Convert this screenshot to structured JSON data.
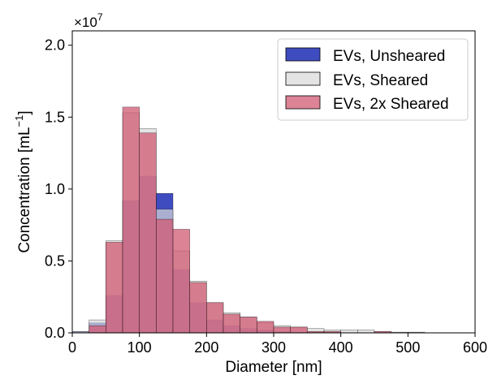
{
  "chart_data": {
    "type": "bar",
    "subtype": "overlaid-histogram",
    "title": "",
    "xlabel": "Diameter [nm]",
    "ylabel_main": "Concentration [mL",
    "ylabel_exponent": "−1",
    "ylabel_close": "]",
    "y_multiplier_base": "×10",
    "y_multiplier_exponent": "7",
    "xlim": [
      0,
      600
    ],
    "ylim": [
      0,
      2.1
    ],
    "x_ticks": [
      0,
      100,
      200,
      300,
      400,
      500,
      600
    ],
    "x_tick_labels": [
      "0",
      "100",
      "200",
      "300",
      "400",
      "500",
      "600"
    ],
    "y_ticks": [
      0,
      0.5,
      1.0,
      1.5,
      2.0
    ],
    "y_tick_labels": [
      "0.0",
      "0.5",
      "1.0",
      "1.5",
      "2.0"
    ],
    "bin_edges": [
      0,
      25,
      50,
      75,
      100,
      125,
      150,
      175,
      200,
      225,
      250,
      275,
      300,
      325,
      350,
      375,
      400,
      425,
      450,
      475,
      500,
      525,
      550,
      575,
      600
    ],
    "legend_position": "top-right",
    "series": [
      {
        "name": "EVs, Unsheared",
        "color": "#0f1fb0",
        "opacity": 0.8,
        "values": [
          0.01,
          0.07,
          0.26,
          0.92,
          1.09,
          0.97,
          0.44,
          0.21,
          0.09,
          0.05,
          0.03,
          0.02,
          0.01,
          0.005,
          0.005,
          0.003,
          0,
          0,
          0,
          0,
          0,
          0,
          0,
          0
        ]
      },
      {
        "name": "EVs, Sheared",
        "color": "#d9d9d9",
        "opacity": 0.7,
        "values": [
          0.01,
          0.09,
          0.64,
          1.53,
          1.42,
          0.86,
          0.57,
          0.36,
          0.21,
          0.14,
          0.11,
          0.07,
          0.05,
          0.04,
          0.03,
          0.02,
          0.02,
          0.02,
          0.01,
          0.005,
          0.005,
          0,
          0,
          0
        ]
      },
      {
        "name": "EVs, 2x Sheared",
        "color": "#d05a73",
        "opacity": 0.75,
        "values": [
          0,
          0.05,
          0.63,
          1.57,
          1.39,
          0.79,
          0.72,
          0.35,
          0.21,
          0.13,
          0.11,
          0.08,
          0.04,
          0.04,
          0.01,
          0.01,
          0,
          0,
          0.01,
          0,
          0,
          0,
          0,
          0
        ]
      }
    ]
  }
}
